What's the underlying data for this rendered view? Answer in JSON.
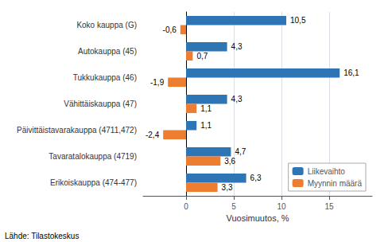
{
  "chart_data": {
    "type": "bar",
    "orientation": "horizontal",
    "xlabel": "Vuosimuutos, %",
    "annotations": [
      "Lähde: Tilastokeskus"
    ],
    "categories": [
      "Erikoiskauppa (474-477)",
      "Tavaratalokauppa (4719)",
      "Päivittäistavarakauppa (4711,472)",
      "Vähittäiskauppa (47)",
      "Tukkukauppa (46)",
      "Autokauppa (45)",
      "Koko kauppa (G)"
    ],
    "series": [
      {
        "name": "Liikevaihto",
        "color": "#2E75B6",
        "values": [
          6.3,
          4.7,
          1.1,
          4.3,
          16.1,
          4.3,
          10.5
        ],
        "value_labels": [
          "6,3",
          "4,7",
          "1,1",
          "4,3",
          "16,1",
          "4,3",
          "10,5"
        ]
      },
      {
        "name": "Myynnin määrä",
        "color": "#ED7D31",
        "values": [
          3.3,
          3.6,
          -2.4,
          1.1,
          -1.9,
          0.7,
          -0.6
        ],
        "value_labels": [
          "3,3",
          "3,6",
          "-2,4",
          "1,1",
          "-1,9",
          "0,7",
          "-0,6"
        ]
      }
    ],
    "xlim": [
      -4.5,
      19.5
    ],
    "xticks": [
      0,
      5,
      10,
      15
    ],
    "grid": true,
    "legend": "lower right",
    "data_labels": true
  }
}
